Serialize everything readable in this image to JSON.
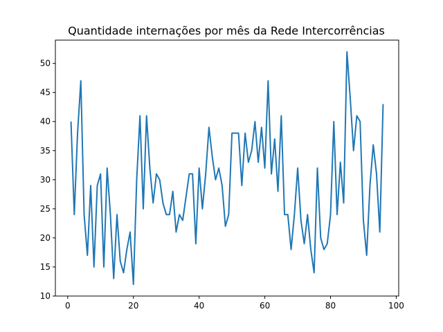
{
  "chart_data": {
    "type": "line",
    "title": "Quantidade internações por mês da Rede Intercorrências",
    "xlabel": "",
    "ylabel": "",
    "xlim": [
      -3.75,
      100.75
    ],
    "ylim": [
      10,
      54.0
    ],
    "xticks": [
      0,
      20,
      40,
      60,
      80,
      100
    ],
    "yticks": [
      10,
      15,
      20,
      25,
      30,
      35,
      40,
      45,
      50
    ],
    "xtick_labels": [
      "0",
      "20",
      "40",
      "60",
      "80",
      "100"
    ],
    "ytick_labels": [
      "10",
      "15",
      "20",
      "25",
      "30",
      "35",
      "40",
      "45",
      "50"
    ],
    "grid": false,
    "series_color": "#1f77b4",
    "series": [
      {
        "x": [
          1,
          2,
          3,
          4,
          5,
          6,
          7,
          8,
          9,
          10,
          11,
          12,
          13,
          14,
          15,
          16,
          17,
          18,
          19,
          20,
          21,
          22,
          23,
          24,
          25,
          26,
          27,
          28,
          29,
          30,
          31,
          32,
          33,
          34,
          35,
          36,
          37,
          38,
          39,
          40,
          41,
          42,
          43,
          44,
          45,
          46,
          47,
          48,
          49,
          50,
          51,
          52,
          53,
          54,
          55,
          56,
          57,
          58,
          59,
          60,
          61,
          62,
          63,
          64,
          65,
          66,
          67,
          68,
          69,
          70,
          71,
          72,
          73,
          74,
          75,
          76,
          77,
          78,
          79,
          80,
          81,
          82,
          83,
          84,
          85,
          86,
          87,
          88,
          89,
          90,
          91,
          92,
          93,
          94,
          95,
          96
        ],
        "values": [
          40,
          24,
          38,
          47,
          24,
          17,
          29,
          15,
          29,
          31,
          15,
          32,
          24,
          13,
          24,
          16,
          14,
          18,
          21,
          12,
          30,
          41,
          25,
          41,
          32,
          26,
          31,
          30,
          26,
          24,
          24,
          28,
          21,
          24,
          23,
          27,
          31,
          31,
          19,
          32,
          25,
          31,
          39,
          34,
          30,
          32,
          29,
          22,
          24,
          38,
          38,
          38,
          29,
          38,
          33,
          35,
          40,
          33,
          39,
          32,
          47,
          31,
          37,
          28,
          41,
          24,
          24,
          18,
          24,
          32,
          23,
          19,
          24,
          18,
          14,
          32,
          20,
          18,
          19,
          24,
          40,
          24,
          33,
          26,
          52,
          44,
          35,
          41,
          40,
          23,
          17,
          29,
          36,
          31,
          21,
          43
        ]
      }
    ]
  }
}
